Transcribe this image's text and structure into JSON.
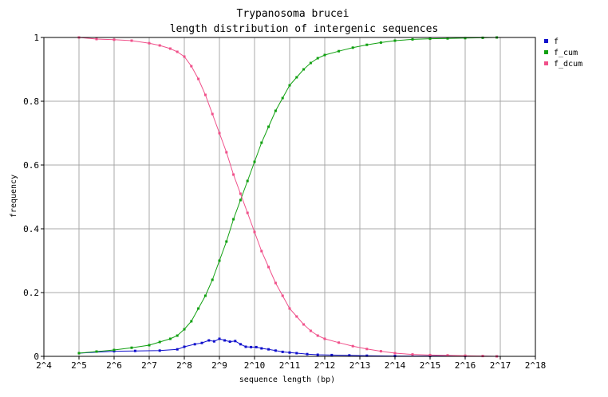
{
  "chart_data": {
    "type": "line",
    "title": [
      "Trypanosoma brucei",
      "length distribution of intergenic sequences"
    ],
    "xlabel": "sequence length (bp)",
    "ylabel": "frequency",
    "x_scale": "log2",
    "xlim": [
      4,
      18
    ],
    "ylim": [
      0,
      1
    ],
    "x_tick_labels": [
      "2^4",
      "2^5",
      "2^6",
      "2^7",
      "2^8",
      "2^9",
      "2^10",
      "2^11",
      "2^12",
      "2^13",
      "2^14",
      "2^15",
      "2^16",
      "2^17",
      "2^18"
    ],
    "y_tick_labels": [
      "0",
      "0.2",
      "0.4",
      "0.6",
      "0.8",
      "1"
    ],
    "y_ticks": [
      0,
      0.2,
      0.4,
      0.6,
      0.8,
      1
    ],
    "grid": true,
    "legend_position": "right",
    "series": [
      {
        "name": "f",
        "color": "#1010cc",
        "points": [
          [
            5.0,
            0.01
          ],
          [
            6.0,
            0.016
          ],
          [
            6.6,
            0.017
          ],
          [
            7.3,
            0.018
          ],
          [
            7.8,
            0.022
          ],
          [
            8.0,
            0.03
          ],
          [
            8.3,
            0.038
          ],
          [
            8.5,
            0.042
          ],
          [
            8.7,
            0.05
          ],
          [
            8.85,
            0.047
          ],
          [
            9.0,
            0.055
          ],
          [
            9.15,
            0.05
          ],
          [
            9.3,
            0.046
          ],
          [
            9.45,
            0.048
          ],
          [
            9.6,
            0.038
          ],
          [
            9.75,
            0.03
          ],
          [
            9.9,
            0.029
          ],
          [
            10.05,
            0.029
          ],
          [
            10.2,
            0.025
          ],
          [
            10.4,
            0.022
          ],
          [
            10.6,
            0.018
          ],
          [
            10.8,
            0.014
          ],
          [
            11.0,
            0.012
          ],
          [
            11.2,
            0.01
          ],
          [
            11.5,
            0.007
          ],
          [
            11.8,
            0.005
          ],
          [
            12.2,
            0.004
          ],
          [
            12.7,
            0.003
          ],
          [
            13.2,
            0.002
          ],
          [
            14.0,
            0.001
          ],
          [
            15.0,
            0.001
          ],
          [
            16.0,
            0.001
          ],
          [
            16.9,
            0.0
          ]
        ]
      },
      {
        "name": "f_cum",
        "color": "#10a010",
        "points": [
          [
            5.0,
            0.01
          ],
          [
            5.5,
            0.015
          ],
          [
            6.0,
            0.02
          ],
          [
            6.5,
            0.027
          ],
          [
            7.0,
            0.035
          ],
          [
            7.3,
            0.045
          ],
          [
            7.6,
            0.055
          ],
          [
            7.8,
            0.065
          ],
          [
            8.0,
            0.085
          ],
          [
            8.2,
            0.11
          ],
          [
            8.4,
            0.15
          ],
          [
            8.6,
            0.19
          ],
          [
            8.8,
            0.24
          ],
          [
            9.0,
            0.3
          ],
          [
            9.2,
            0.36
          ],
          [
            9.4,
            0.43
          ],
          [
            9.6,
            0.49
          ],
          [
            9.8,
            0.55
          ],
          [
            10.0,
            0.61
          ],
          [
            10.2,
            0.67
          ],
          [
            10.4,
            0.72
          ],
          [
            10.6,
            0.77
          ],
          [
            10.8,
            0.81
          ],
          [
            11.0,
            0.85
          ],
          [
            11.2,
            0.875
          ],
          [
            11.4,
            0.9
          ],
          [
            11.6,
            0.92
          ],
          [
            11.8,
            0.935
          ],
          [
            12.0,
            0.945
          ],
          [
            12.4,
            0.957
          ],
          [
            12.8,
            0.968
          ],
          [
            13.2,
            0.977
          ],
          [
            13.6,
            0.984
          ],
          [
            14.0,
            0.99
          ],
          [
            14.5,
            0.994
          ],
          [
            15.0,
            0.996
          ],
          [
            15.5,
            0.997
          ],
          [
            16.0,
            0.998
          ],
          [
            16.5,
            0.999
          ],
          [
            16.9,
            1.0
          ]
        ]
      },
      {
        "name": "f_dcum",
        "color": "#f0508a",
        "points": [
          [
            5.0,
            1.0
          ],
          [
            5.5,
            0.995
          ],
          [
            6.0,
            0.993
          ],
          [
            6.5,
            0.99
          ],
          [
            7.0,
            0.982
          ],
          [
            7.3,
            0.975
          ],
          [
            7.6,
            0.965
          ],
          [
            7.8,
            0.955
          ],
          [
            8.0,
            0.94
          ],
          [
            8.2,
            0.91
          ],
          [
            8.4,
            0.87
          ],
          [
            8.6,
            0.82
          ],
          [
            8.8,
            0.76
          ],
          [
            9.0,
            0.7
          ],
          [
            9.2,
            0.64
          ],
          [
            9.4,
            0.57
          ],
          [
            9.6,
            0.51
          ],
          [
            9.8,
            0.45
          ],
          [
            10.0,
            0.39
          ],
          [
            10.2,
            0.33
          ],
          [
            10.4,
            0.28
          ],
          [
            10.6,
            0.23
          ],
          [
            10.8,
            0.19
          ],
          [
            11.0,
            0.15
          ],
          [
            11.2,
            0.125
          ],
          [
            11.4,
            0.1
          ],
          [
            11.6,
            0.08
          ],
          [
            11.8,
            0.065
          ],
          [
            12.0,
            0.055
          ],
          [
            12.4,
            0.043
          ],
          [
            12.8,
            0.032
          ],
          [
            13.2,
            0.023
          ],
          [
            13.6,
            0.016
          ],
          [
            14.0,
            0.01
          ],
          [
            14.5,
            0.006
          ],
          [
            15.0,
            0.004
          ],
          [
            15.5,
            0.003
          ],
          [
            16.0,
            0.002
          ],
          [
            16.5,
            0.001
          ],
          [
            16.9,
            0.0
          ]
        ]
      }
    ]
  }
}
